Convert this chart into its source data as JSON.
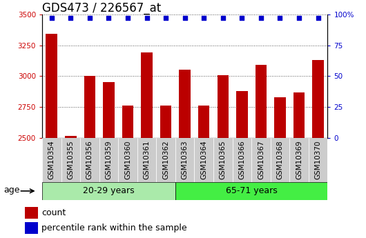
{
  "title": "GDS473 / 226567_at",
  "categories": [
    "GSM10354",
    "GSM10355",
    "GSM10356",
    "GSM10359",
    "GSM10360",
    "GSM10361",
    "GSM10362",
    "GSM10363",
    "GSM10364",
    "GSM10365",
    "GSM10366",
    "GSM10367",
    "GSM10368",
    "GSM10369",
    "GSM10370"
  ],
  "counts": [
    3340,
    2520,
    3000,
    2950,
    2760,
    3190,
    2760,
    3050,
    2760,
    3010,
    2880,
    3090,
    2830,
    2870,
    3130
  ],
  "percentile_ranks": [
    97,
    97,
    97,
    97,
    97,
    97,
    97,
    97,
    97,
    97,
    97,
    97,
    97,
    97,
    97
  ],
  "group1_label": "20-29 years",
  "group2_label": "65-71 years",
  "group1_count": 7,
  "group2_count": 8,
  "bar_color": "#bb0000",
  "dot_color": "#0000cc",
  "ymin": 2500,
  "ymax": 3500,
  "yticks": [
    2500,
    2750,
    3000,
    3250,
    3500
  ],
  "right_yticks": [
    0,
    25,
    50,
    75,
    100
  ],
  "right_ytick_labels": [
    "0",
    "25",
    "50",
    "75",
    "100%"
  ],
  "grid_color": "#000000",
  "plot_bg": "#ffffff",
  "cell_bg": "#cccccc",
  "group1_bg": "#aaeaaa",
  "group2_bg": "#44ee44",
  "xlabel_color": "#cc0000",
  "ylabel_right_color": "#0000cc",
  "title_fontsize": 12,
  "tick_fontsize": 7.5,
  "legend_fontsize": 9
}
